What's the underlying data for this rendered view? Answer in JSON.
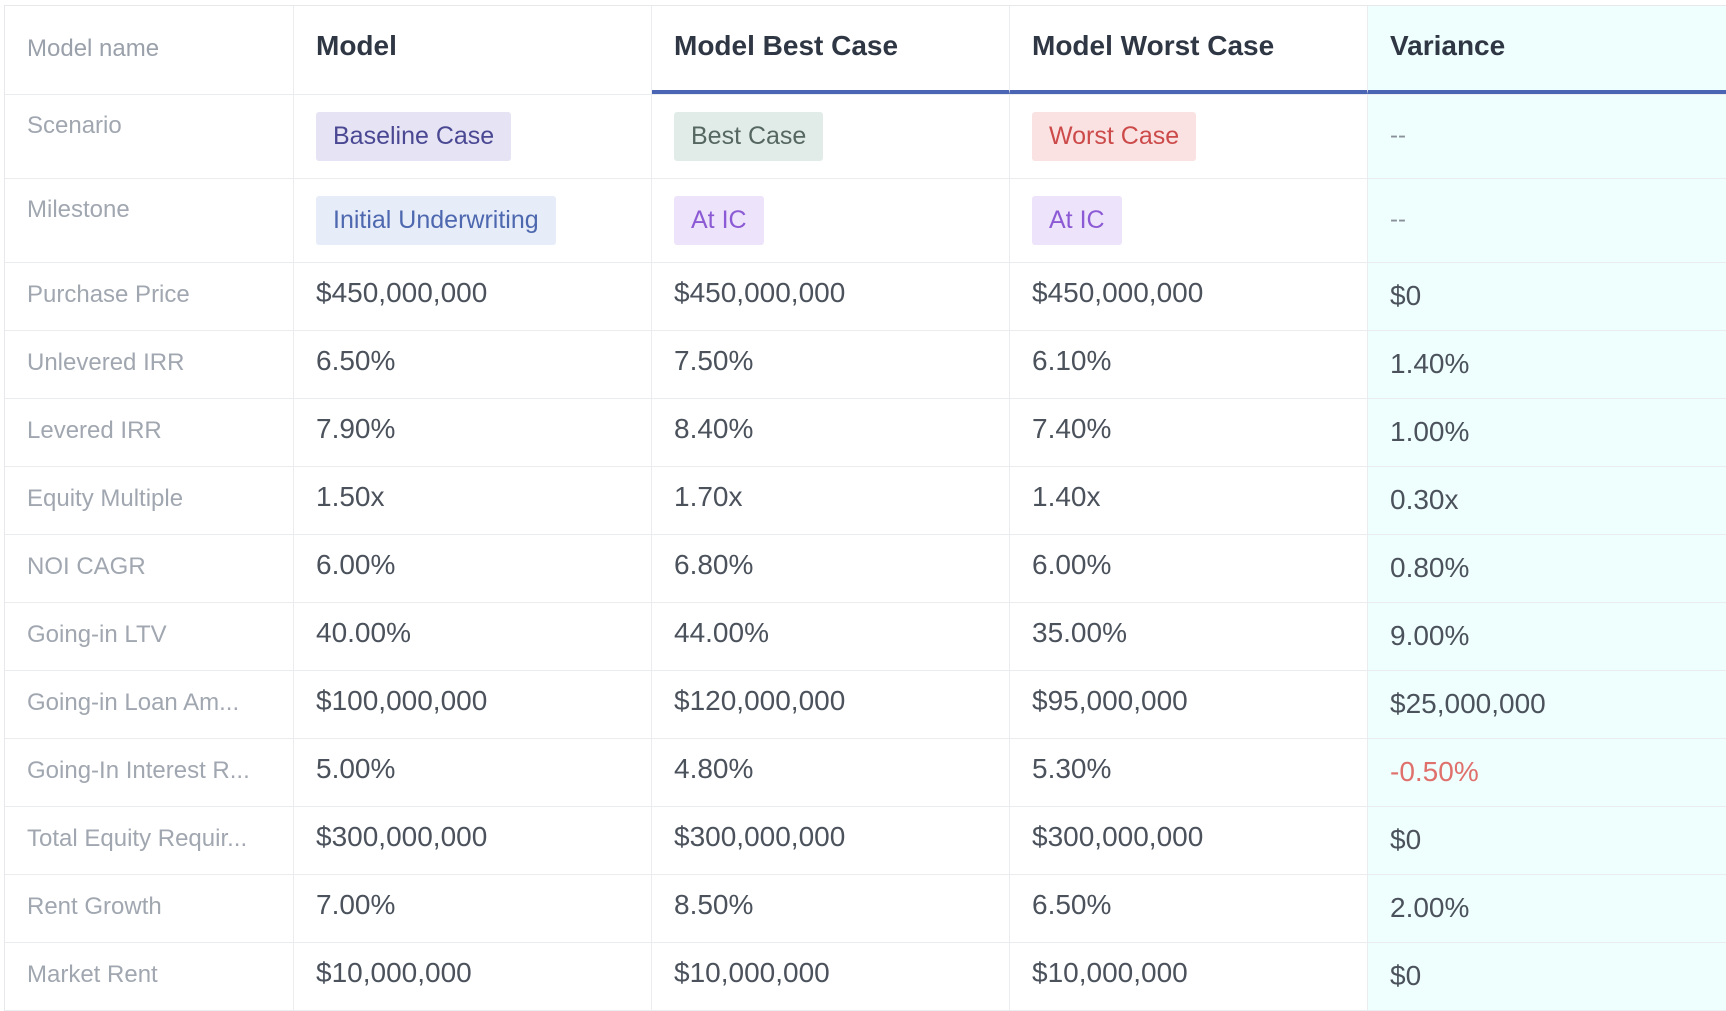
{
  "header": {
    "row_label": "Model name",
    "columns": [
      "Model",
      "Model Best Case",
      "Model Worst Case",
      "Variance"
    ]
  },
  "scenario": {
    "label": "Scenario",
    "tags": [
      "Baseline Case",
      "Best Case",
      "Worst Case"
    ],
    "variance": "--"
  },
  "milestone": {
    "label": "Milestone",
    "tags": [
      "Initial Underwriting",
      "At IC",
      "At IC"
    ],
    "variance": "--"
  },
  "rows": [
    {
      "label": "Purchase Price",
      "values": [
        "$450,000,000",
        "$450,000,000",
        "$450,000,000"
      ],
      "variance": "$0"
    },
    {
      "label": "Unlevered IRR",
      "values": [
        "6.50%",
        "7.50%",
        "6.10%"
      ],
      "variance": "1.40%"
    },
    {
      "label": "Levered IRR",
      "values": [
        "7.90%",
        "8.40%",
        "7.40%"
      ],
      "variance": "1.00%"
    },
    {
      "label": "Equity Multiple",
      "values": [
        "1.50x",
        "1.70x",
        "1.40x"
      ],
      "variance": "0.30x"
    },
    {
      "label": "NOI CAGR",
      "values": [
        "6.00%",
        "6.80%",
        "6.00%"
      ],
      "variance": "0.80%"
    },
    {
      "label": "Going-in LTV",
      "values": [
        "40.00%",
        "44.00%",
        "35.00%"
      ],
      "variance": "9.00%"
    },
    {
      "label": "Going-in Loan Am...",
      "values": [
        "$100,000,000",
        "$120,000,000",
        "$95,000,000"
      ],
      "variance": "$25,000,000"
    },
    {
      "label": "Going-In Interest R...",
      "values": [
        "5.00%",
        "4.80%",
        "5.30%"
      ],
      "variance": "-0.50%"
    },
    {
      "label": "Total Equity Requir...",
      "values": [
        "$300,000,000",
        "$300,000,000",
        "$300,000,000"
      ],
      "variance": "$0"
    },
    {
      "label": "Rent Growth",
      "values": [
        "7.00%",
        "8.50%",
        "6.50%"
      ],
      "variance": "2.00%"
    },
    {
      "label": "Market Rent",
      "values": [
        "$10,000,000",
        "$10,000,000",
        "$10,000,000"
      ],
      "variance": "$0"
    }
  ],
  "colors": {
    "header_underline": "#4a65b3",
    "variance_bg": "#effffe",
    "negative": "#e0706c"
  }
}
